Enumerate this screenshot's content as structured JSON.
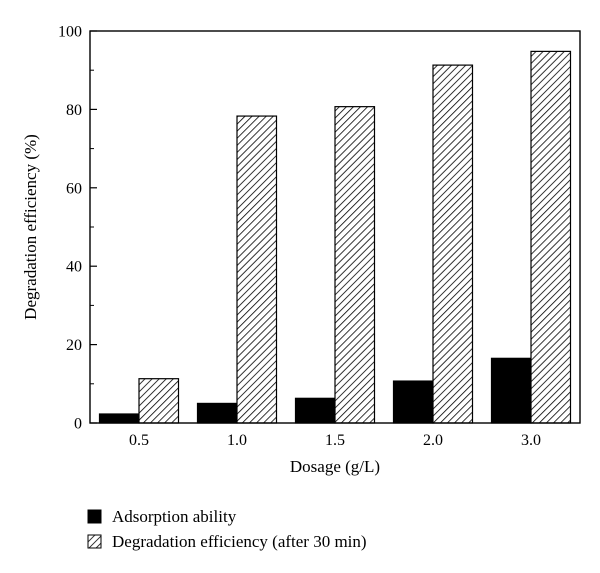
{
  "chart_data": {
    "type": "bar",
    "title": "",
    "xlabel": "Dosage (g/L)",
    "ylabel": "Degradation efficiency (%)",
    "categories": [
      "0.5",
      "1.0",
      "1.5",
      "2.0",
      "3.0"
    ],
    "ylim": [
      0,
      100
    ],
    "yticks": [
      "0",
      "20",
      "40",
      "60",
      "80",
      "100"
    ],
    "grid": false,
    "legend_position": "bottom",
    "series": [
      {
        "name": "Adsorption ability",
        "values": [
          2.3,
          5.0,
          6.3,
          10.7,
          16.5
        ],
        "fill": "solid",
        "color": "#000000"
      },
      {
        "name": "Degradation efficiency (after 30 min)",
        "values": [
          11.3,
          78.3,
          80.7,
          91.3,
          94.8
        ],
        "fill": "hatched",
        "color": "#000000"
      }
    ]
  }
}
